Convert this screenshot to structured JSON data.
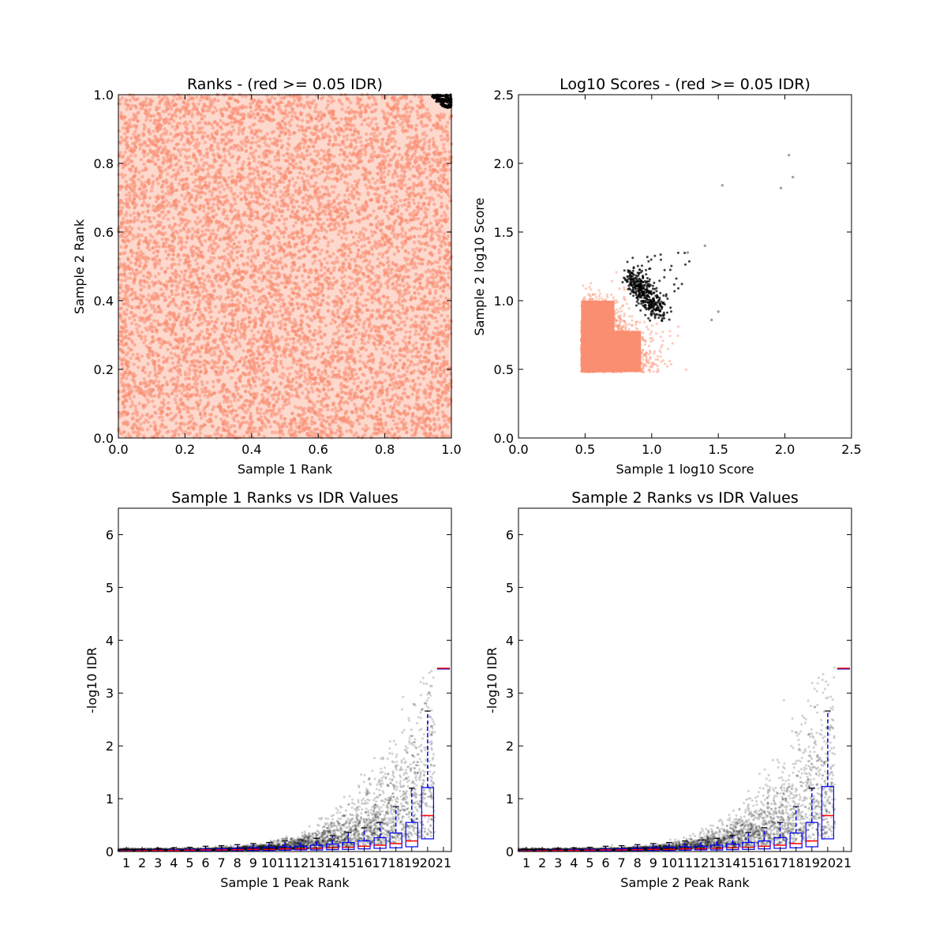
{
  "chart_data": [
    {
      "type": "scatter",
      "title": "Ranks - (red >= 0.05 IDR)",
      "xlabel": "Sample 1 Rank",
      "ylabel": "Sample 2 Rank",
      "xlim": [
        0.0,
        1.0
      ],
      "ylim": [
        0.0,
        1.0
      ],
      "xticks": [
        "0.0",
        "0.2",
        "0.4",
        "0.6",
        "0.8",
        "1.0"
      ],
      "yticks": [
        "0.0",
        "0.2",
        "0.4",
        "0.6",
        "0.8",
        "1.0"
      ],
      "grid": false,
      "series": [
        {
          "color": "#fa8e72",
          "description": "uniform density over [0,1]x[0,1], excluding top-right corner",
          "n": 9000
        },
        {
          "color": "#000000",
          "description": "points in top-right corner (x>~0.9, y>~0.96)",
          "n": 500
        }
      ]
    },
    {
      "type": "scatter",
      "title": "Log10 Scores - (red >= 0.05 IDR)",
      "xlabel": "Sample 1 log10 Score",
      "ylabel": "Sample 2 log10 Score",
      "xlim": [
        0.0,
        2.5
      ],
      "ylim": [
        0.0,
        2.5
      ],
      "xticks": [
        "0.0",
        "0.5",
        "1.0",
        "1.5",
        "2.0",
        "2.5"
      ],
      "yticks": [
        "0.0",
        "0.5",
        "1.0",
        "1.5",
        "2.0",
        "2.5"
      ],
      "grid": false,
      "series": [
        {
          "color": "#fa8e72",
          "description": "dense block x 0.47-1.25, y 0.48-1.2"
        },
        {
          "color": "#000000",
          "description": "outlier arc x 0.8-1.4, y 0.85-1.4"
        }
      ],
      "outliers": [
        {
          "x": 1.53,
          "y": 1.84
        },
        {
          "x": 1.97,
          "y": 1.82
        },
        {
          "x": 2.03,
          "y": 2.06
        },
        {
          "x": 2.06,
          "y": 1.9
        },
        {
          "x": 1.4,
          "y": 1.4
        },
        {
          "x": 1.27,
          "y": 1.35
        },
        {
          "x": 1.5,
          "y": 0.92
        },
        {
          "x": 1.45,
          "y": 0.86
        }
      ]
    },
    {
      "type": "box",
      "title": "Sample 1 Ranks vs IDR Values",
      "xlabel": "Sample 1 Peak Rank",
      "ylabel": "-log10 IDR",
      "ylim": [
        0,
        6.5
      ],
      "yticks": [
        "0",
        "1",
        "2",
        "3",
        "4",
        "5",
        "6"
      ],
      "categories": [
        "1",
        "2",
        "3",
        "4",
        "5",
        "6",
        "7",
        "8",
        "9",
        "10",
        "11",
        "12",
        "13",
        "14",
        "15",
        "16",
        "17",
        "18",
        "19",
        "20",
        "21"
      ],
      "box_color": "#0000ff",
      "median_color": "#ff0000",
      "point_color": "#000000",
      "boxes": [
        {
          "q1": 0.005,
          "med": 0.01,
          "q3": 0.02,
          "wlo": 0,
          "whi": 0.04
        },
        {
          "q1": 0.01,
          "med": 0.015,
          "q3": 0.025,
          "wlo": 0,
          "whi": 0.05
        },
        {
          "q1": 0.01,
          "med": 0.02,
          "q3": 0.03,
          "wlo": 0,
          "whi": 0.06
        },
        {
          "q1": 0.012,
          "med": 0.02,
          "q3": 0.035,
          "wlo": 0,
          "whi": 0.07
        },
        {
          "q1": 0.015,
          "med": 0.025,
          "q3": 0.04,
          "wlo": 0,
          "whi": 0.08
        },
        {
          "q1": 0.015,
          "med": 0.03,
          "q3": 0.045,
          "wlo": 0,
          "whi": 0.1
        },
        {
          "q1": 0.02,
          "med": 0.03,
          "q3": 0.05,
          "wlo": 0,
          "whi": 0.11
        },
        {
          "q1": 0.02,
          "med": 0.035,
          "q3": 0.06,
          "wlo": 0,
          "whi": 0.13
        },
        {
          "q1": 0.02,
          "med": 0.04,
          "q3": 0.07,
          "wlo": 0,
          "whi": 0.15
        },
        {
          "q1": 0.02,
          "med": 0.04,
          "q3": 0.08,
          "wlo": 0,
          "whi": 0.17
        },
        {
          "q1": 0.025,
          "med": 0.05,
          "q3": 0.09,
          "wlo": 0,
          "whi": 0.2
        },
        {
          "q1": 0.03,
          "med": 0.05,
          "q3": 0.1,
          "wlo": 0,
          "whi": 0.22
        },
        {
          "q1": 0.03,
          "med": 0.06,
          "q3": 0.12,
          "wlo": 0,
          "whi": 0.25
        },
        {
          "q1": 0.035,
          "med": 0.07,
          "q3": 0.14,
          "wlo": 0,
          "whi": 0.3
        },
        {
          "q1": 0.04,
          "med": 0.08,
          "q3": 0.17,
          "wlo": 0,
          "whi": 0.36
        },
        {
          "q1": 0.05,
          "med": 0.1,
          "q3": 0.2,
          "wlo": 0,
          "whi": 0.45
        },
        {
          "q1": 0.06,
          "med": 0.12,
          "q3": 0.26,
          "wlo": 0,
          "whi": 0.55
        },
        {
          "q1": 0.07,
          "med": 0.15,
          "q3": 0.35,
          "wlo": 0,
          "whi": 0.85
        },
        {
          "q1": 0.09,
          "med": 0.2,
          "q3": 0.55,
          "wlo": 0,
          "whi": 1.2
        },
        {
          "q1": 0.24,
          "med": 0.68,
          "q3": 1.21,
          "wlo": 0,
          "whi": 2.66
        },
        {
          "q1": 3.47,
          "med": 3.47,
          "q3": 3.47,
          "wlo": 3.47,
          "whi": 3.47
        }
      ]
    },
    {
      "type": "box",
      "title": "Sample 2 Ranks vs IDR Values",
      "xlabel": "Sample 2 Peak Rank",
      "ylabel": "-log10 IDR",
      "ylim": [
        0,
        6.5
      ],
      "yticks": [
        "0",
        "1",
        "2",
        "3",
        "4",
        "5",
        "6"
      ],
      "categories": [
        "1",
        "2",
        "3",
        "4",
        "5",
        "6",
        "7",
        "8",
        "9",
        "10",
        "11",
        "12",
        "13",
        "14",
        "15",
        "16",
        "17",
        "18",
        "19",
        "20",
        "21"
      ],
      "box_color": "#0000ff",
      "median_color": "#ff0000",
      "point_color": "#000000",
      "boxes": [
        {
          "q1": 0.005,
          "med": 0.01,
          "q3": 0.02,
          "wlo": 0,
          "whi": 0.04
        },
        {
          "q1": 0.01,
          "med": 0.015,
          "q3": 0.025,
          "wlo": 0,
          "whi": 0.05
        },
        {
          "q1": 0.01,
          "med": 0.02,
          "q3": 0.03,
          "wlo": 0,
          "whi": 0.06
        },
        {
          "q1": 0.012,
          "med": 0.02,
          "q3": 0.035,
          "wlo": 0,
          "whi": 0.07
        },
        {
          "q1": 0.015,
          "med": 0.025,
          "q3": 0.04,
          "wlo": 0,
          "whi": 0.08
        },
        {
          "q1": 0.015,
          "med": 0.03,
          "q3": 0.045,
          "wlo": 0,
          "whi": 0.1
        },
        {
          "q1": 0.02,
          "med": 0.03,
          "q3": 0.05,
          "wlo": 0,
          "whi": 0.11
        },
        {
          "q1": 0.02,
          "med": 0.035,
          "q3": 0.06,
          "wlo": 0,
          "whi": 0.13
        },
        {
          "q1": 0.02,
          "med": 0.04,
          "q3": 0.07,
          "wlo": 0,
          "whi": 0.15
        },
        {
          "q1": 0.02,
          "med": 0.04,
          "q3": 0.08,
          "wlo": 0,
          "whi": 0.17
        },
        {
          "q1": 0.025,
          "med": 0.05,
          "q3": 0.09,
          "wlo": 0,
          "whi": 0.2
        },
        {
          "q1": 0.03,
          "med": 0.05,
          "q3": 0.1,
          "wlo": 0,
          "whi": 0.22
        },
        {
          "q1": 0.03,
          "med": 0.06,
          "q3": 0.12,
          "wlo": 0,
          "whi": 0.25
        },
        {
          "q1": 0.035,
          "med": 0.07,
          "q3": 0.14,
          "wlo": 0,
          "whi": 0.3
        },
        {
          "q1": 0.04,
          "med": 0.08,
          "q3": 0.17,
          "wlo": 0,
          "whi": 0.36
        },
        {
          "q1": 0.05,
          "med": 0.1,
          "q3": 0.2,
          "wlo": 0,
          "whi": 0.45
        },
        {
          "q1": 0.06,
          "med": 0.12,
          "q3": 0.26,
          "wlo": 0,
          "whi": 0.55
        },
        {
          "q1": 0.07,
          "med": 0.15,
          "q3": 0.35,
          "wlo": 0,
          "whi": 0.85
        },
        {
          "q1": 0.09,
          "med": 0.2,
          "q3": 0.55,
          "wlo": 0,
          "whi": 1.2
        },
        {
          "q1": 0.24,
          "med": 0.68,
          "q3": 1.23,
          "wlo": 0,
          "whi": 2.66
        },
        {
          "q1": 3.47,
          "med": 3.47,
          "q3": 3.47,
          "wlo": 3.47,
          "whi": 3.47
        }
      ]
    }
  ]
}
